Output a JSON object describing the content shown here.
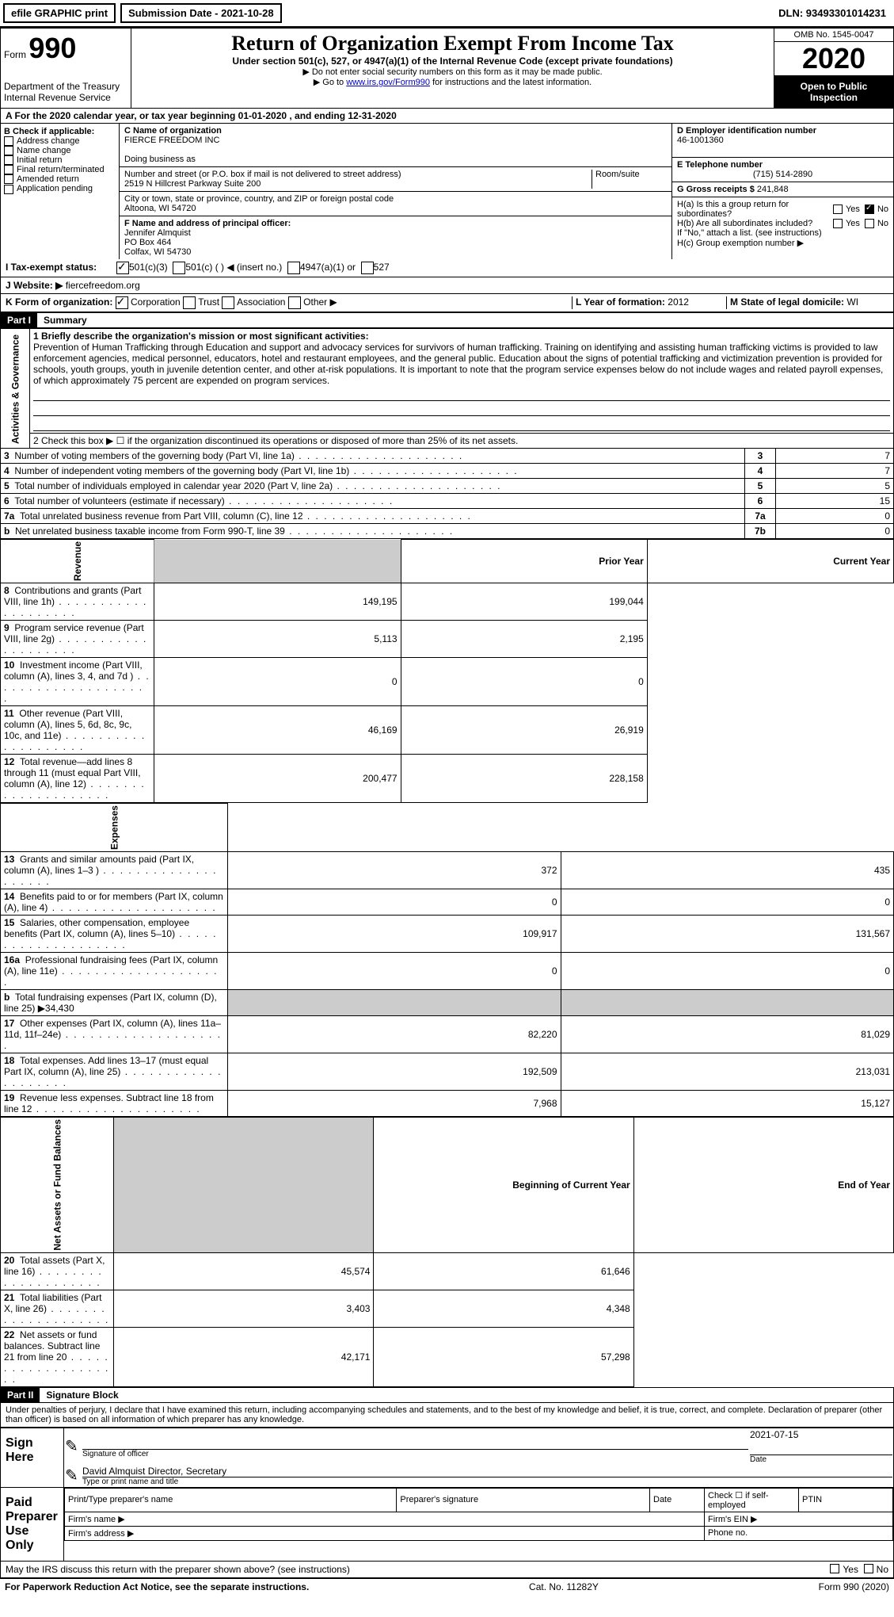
{
  "topbar": {
    "efile": "efile GRAPHIC print",
    "submission": "Submission Date - 2021-10-28",
    "dln": "DLN: 93493301014231"
  },
  "header": {
    "form_word": "Form",
    "form_no": "990",
    "dept": "Department of the Treasury\nInternal Revenue Service",
    "title": "Return of Organization Exempt From Income Tax",
    "subtitle": "Under section 501(c), 527, or 4947(a)(1) of the Internal Revenue Code (except private foundations)",
    "note1": "▶ Do not enter social security numbers on this form as it may be made public.",
    "note2_pre": "▶ Go to ",
    "note2_link": "www.irs.gov/Form990",
    "note2_post": " for instructions and the latest information.",
    "omb": "OMB No. 1545-0047",
    "year": "2020",
    "open": "Open to Public Inspection"
  },
  "rowA": "A For the 2020 calendar year, or tax year beginning 01-01-2020   , and ending 12-31-2020",
  "boxB": {
    "title": "B Check if applicable:",
    "items": [
      "Address change",
      "Name change",
      "Initial return",
      "Final return/terminated",
      "Amended return",
      "Application pending"
    ]
  },
  "boxC": {
    "label": "C Name of organization",
    "name": "FIERCE FREEDOM INC",
    "dba_label": "Doing business as",
    "street_label": "Number and street (or P.O. box if mail is not delivered to street address)",
    "street": "2519 N Hillcrest Parkway Suite 200",
    "room_label": "Room/suite",
    "city_label": "City or town, state or province, country, and ZIP or foreign postal code",
    "city": "Altoona, WI  54720",
    "f_label": "F Name and address of principal officer:",
    "f_name": "Jennifer Almquist",
    "f_addr1": "PO Box 464",
    "f_addr2": "Colfax, WI  54730"
  },
  "boxD": {
    "label": "D Employer identification number",
    "value": "46-1001360"
  },
  "boxE": {
    "label": "E Telephone number",
    "value": "(715) 514-2890"
  },
  "boxG": {
    "label": "G Gross receipts $",
    "value": "241,848"
  },
  "boxH": {
    "a": "H(a)  Is this a group return for subordinates?",
    "b": "H(b)  Are all subordinates included?",
    "b_note": "If \"No,\" attach a list. (see instructions)",
    "c": "H(c)  Group exemption number ▶",
    "yes": "Yes",
    "no": "No"
  },
  "rowI": {
    "label": "I   Tax-exempt status:",
    "opt1": "501(c)(3)",
    "opt2": "501(c) (  ) ◀ (insert no.)",
    "opt3": "4947(a)(1) or",
    "opt4": "527"
  },
  "rowJ": {
    "label": "J   Website: ▶",
    "value": "fiercefreedom.org"
  },
  "rowK": {
    "label": "K Form of organization:",
    "opts": [
      "Corporation",
      "Trust",
      "Association",
      "Other ▶"
    ]
  },
  "rowL": {
    "label": "L Year of formation:",
    "value": "2012"
  },
  "rowM": {
    "label": "M State of legal domicile:",
    "value": "WI"
  },
  "part1": {
    "header": "Part I",
    "title": "Summary",
    "side_ag": "Activities & Governance",
    "side_rev": "Revenue",
    "side_exp": "Expenses",
    "side_na": "Net Assets or Fund Balances",
    "l1_label": "1   Briefly describe the organization's mission or most significant activities:",
    "l1_text": "Prevention of Human Trafficking through Education and support and advocacy services for survivors of human trafficking. Training on identifying and assisting human trafficking victims is provided to law enforcement agencies, medical personnel, educators, hotel and restaurant employees, and the general public. Education about the signs of potential trafficking and victimization prevention is provided for schools, youth groups, youth in juvenile detention center, and other at-risk populations. It is important to note that the program service expenses below do not include wages and related payroll expenses, of which approximately 75 percent are expended on program services.",
    "l2": "2   Check this box ▶ ☐ if the organization discontinued its operations or disposed of more than 25% of its net assets.",
    "rows_ag": [
      {
        "n": "3",
        "d": "Number of voting members of the governing body (Part VI, line 1a)",
        "k": "3",
        "v": "7"
      },
      {
        "n": "4",
        "d": "Number of independent voting members of the governing body (Part VI, line 1b)",
        "k": "4",
        "v": "7"
      },
      {
        "n": "5",
        "d": "Total number of individuals employed in calendar year 2020 (Part V, line 2a)",
        "k": "5",
        "v": "5"
      },
      {
        "n": "6",
        "d": "Total number of volunteers (estimate if necessary)",
        "k": "6",
        "v": "15"
      },
      {
        "n": "7a",
        "d": "Total unrelated business revenue from Part VIII, column (C), line 12",
        "k": "7a",
        "v": "0"
      },
      {
        "n": "b",
        "d": "Net unrelated business taxable income from Form 990-T, line 39",
        "k": "7b",
        "v": "0"
      }
    ],
    "hdr_prior": "Prior Year",
    "hdr_curr": "Current Year",
    "rows_rev": [
      {
        "n": "8",
        "d": "Contributions and grants (Part VIII, line 1h)",
        "p": "149,195",
        "c": "199,044"
      },
      {
        "n": "9",
        "d": "Program service revenue (Part VIII, line 2g)",
        "p": "5,113",
        "c": "2,195"
      },
      {
        "n": "10",
        "d": "Investment income (Part VIII, column (A), lines 3, 4, and 7d )",
        "p": "0",
        "c": "0"
      },
      {
        "n": "11",
        "d": "Other revenue (Part VIII, column (A), lines 5, 6d, 8c, 9c, 10c, and 11e)",
        "p": "46,169",
        "c": "26,919"
      },
      {
        "n": "12",
        "d": "Total revenue—add lines 8 through 11 (must equal Part VIII, column (A), line 12)",
        "p": "200,477",
        "c": "228,158"
      }
    ],
    "rows_exp": [
      {
        "n": "13",
        "d": "Grants and similar amounts paid (Part IX, column (A), lines 1–3 )",
        "p": "372",
        "c": "435"
      },
      {
        "n": "14",
        "d": "Benefits paid to or for members (Part IX, column (A), line 4)",
        "p": "0",
        "c": "0"
      },
      {
        "n": "15",
        "d": "Salaries, other compensation, employee benefits (Part IX, column (A), lines 5–10)",
        "p": "109,917",
        "c": "131,567"
      },
      {
        "n": "16a",
        "d": "Professional fundraising fees (Part IX, column (A), line 11e)",
        "p": "0",
        "c": "0"
      },
      {
        "n": "b",
        "d": "Total fundraising expenses (Part IX, column (D), line 25) ▶34,430",
        "p": "",
        "c": "",
        "shade": true
      },
      {
        "n": "17",
        "d": "Other expenses (Part IX, column (A), lines 11a–11d, 11f–24e)",
        "p": "82,220",
        "c": "81,029"
      },
      {
        "n": "18",
        "d": "Total expenses. Add lines 13–17 (must equal Part IX, column (A), line 25)",
        "p": "192,509",
        "c": "213,031"
      },
      {
        "n": "19",
        "d": "Revenue less expenses. Subtract line 18 from line 12",
        "p": "7,968",
        "c": "15,127"
      }
    ],
    "hdr_beg": "Beginning of Current Year",
    "hdr_end": "End of Year",
    "rows_na": [
      {
        "n": "20",
        "d": "Total assets (Part X, line 16)",
        "p": "45,574",
        "c": "61,646"
      },
      {
        "n": "21",
        "d": "Total liabilities (Part X, line 26)",
        "p": "3,403",
        "c": "4,348"
      },
      {
        "n": "22",
        "d": "Net assets or fund balances. Subtract line 21 from line 20",
        "p": "42,171",
        "c": "57,298"
      }
    ]
  },
  "part2": {
    "header": "Part II",
    "title": "Signature Block",
    "perjury": "Under penalties of perjury, I declare that I have examined this return, including accompanying schedules and statements, and to the best of my knowledge and belief, it is true, correct, and complete. Declaration of preparer (other than officer) is based on all information of which preparer has any knowledge.",
    "sign_here": "Sign Here",
    "sig_officer": "Signature of officer",
    "sig_date_label": "Date",
    "sig_date": "2021-07-15",
    "sig_name": "David Almquist  Director, Secretary",
    "sig_type": "Type or print name and title",
    "paid_prep": "Paid Preparer Use Only",
    "pp_name": "Print/Type preparer's name",
    "pp_sig": "Preparer's signature",
    "pp_date": "Date",
    "pp_check": "Check ☐ if self-employed",
    "pp_ptin": "PTIN",
    "pp_firm": "Firm's name   ▶",
    "pp_ein": "Firm's EIN ▶",
    "pp_addr": "Firm's address ▶",
    "pp_phone": "Phone no.",
    "discuss": "May the IRS discuss this return with the preparer shown above? (see instructions)"
  },
  "footer": {
    "left": "For Paperwork Reduction Act Notice, see the separate instructions.",
    "mid": "Cat. No. 11282Y",
    "right": "Form 990 (2020)"
  }
}
